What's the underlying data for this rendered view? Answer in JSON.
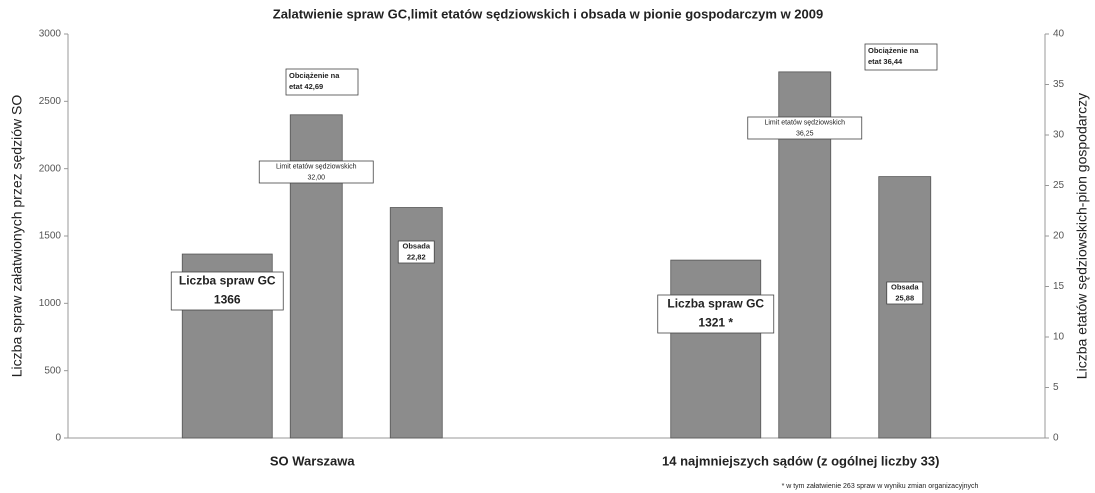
{
  "chart_data": {
    "type": "bar",
    "title": "Zalatwienie spraw GC,limit etatów sędziowskich i obsada w pionie gospodarczym w 2009",
    "categories": [
      "SO Warszawa",
      "14 najmniejszych sądów (z ogólnej liczby 33)"
    ],
    "series": [
      {
        "name": "Liczba spraw GC",
        "color": "#8c8c8c",
        "values": [
          1366,
          1321
        ],
        "value_labels": [
          "1366",
          "1321 *"
        ]
      },
      {
        "name": "Limit etatów sędziowskich",
        "color": "#8c8c8c",
        "axis": "y2",
        "values": [
          32.0,
          36.25
        ],
        "value_labels": [
          "32,00",
          "36,25"
        ]
      },
      {
        "name": "Obsada",
        "color": "#8c8c8c",
        "axis": "y2",
        "values": [
          22.82,
          25.88
        ],
        "value_labels": [
          "22,82",
          "25,88"
        ]
      }
    ],
    "ylabel": "Liczba spraw załatwionych przez sędziów SO",
    "y2label": "Liczba etatów sędziowskich-pion gospodarczy",
    "ylim": [
      0,
      3000
    ],
    "yticks": [
      0,
      500,
      1000,
      1500,
      2000,
      2500,
      3000
    ],
    "y2lim": [
      0,
      40
    ],
    "y2ticks": [
      0,
      5,
      10,
      15,
      20,
      25,
      30,
      35,
      40
    ],
    "annotations": [
      [
        "Obciążenie na",
        "etat 42,69"
      ],
      [
        "Obciążenie na",
        "etat 36,44"
      ]
    ],
    "footnote": "* w tym załatwienie 263 spraw w wyniku zmian organizacyjnych"
  }
}
